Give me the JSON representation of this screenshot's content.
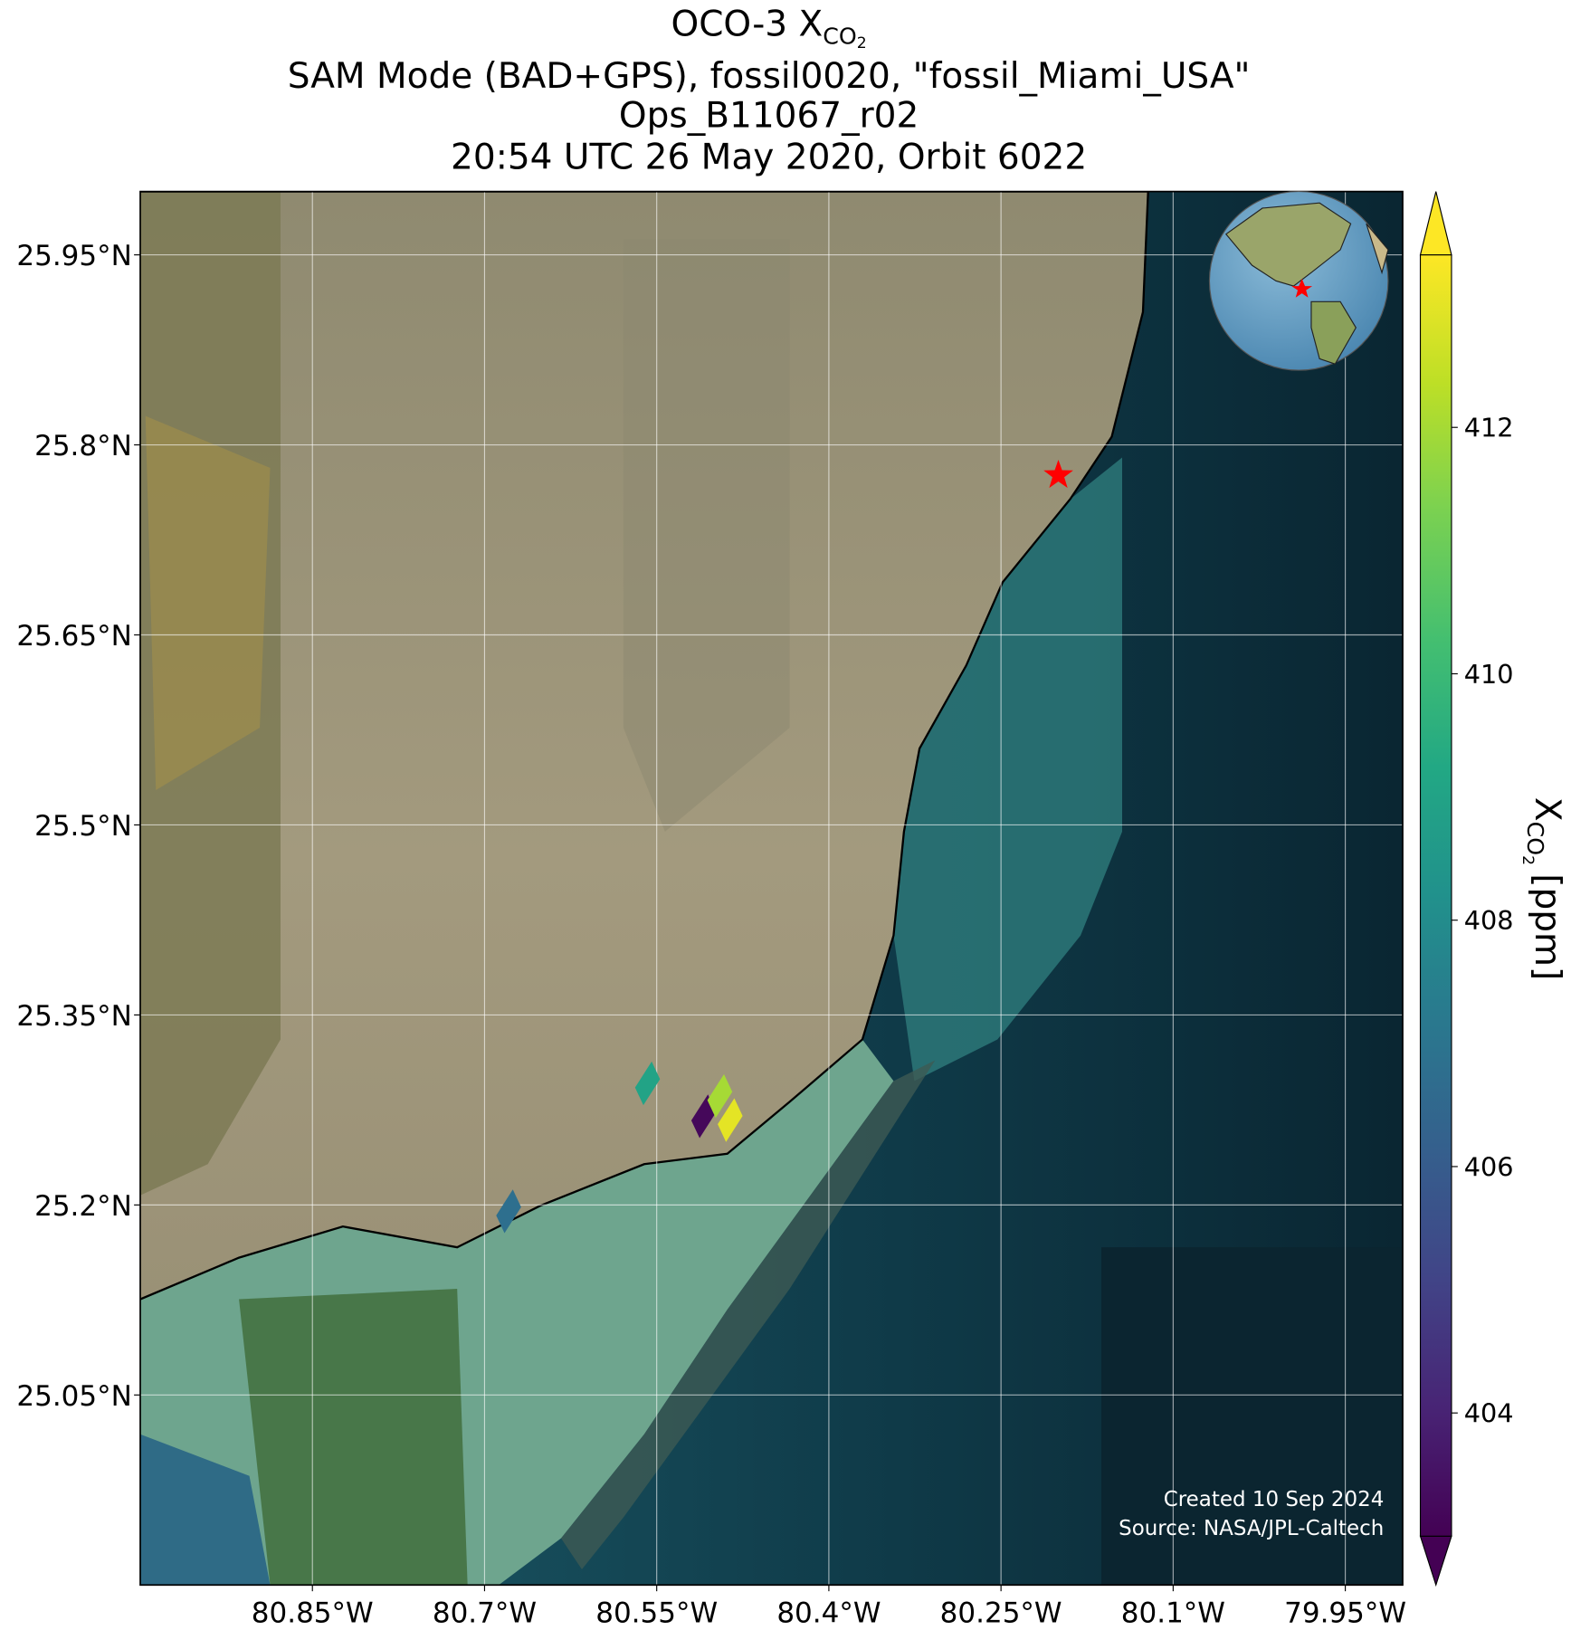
{
  "chart_data": {
    "type": "map",
    "title_prefix": "OCO-3",
    "quantity": {
      "symbol": "X",
      "sub": "CO",
      "subsub": "2"
    },
    "subtitle_lines": [
      "SAM Mode (BAD+GPS), fossil0020, \"fossil_Miami_USA\"",
      "Ops_B11067_r02",
      "20:54 UTC 26 May 2020, Orbit 6022"
    ],
    "xlim": [
      -81.0,
      -79.9
    ],
    "ylim": [
      24.9,
      26.0
    ],
    "xticks": [
      {
        "value": -80.85,
        "label": "80.85°W"
      },
      {
        "value": -80.7,
        "label": "80.7°W"
      },
      {
        "value": -80.55,
        "label": "80.55°W"
      },
      {
        "value": -80.4,
        "label": "80.4°W"
      },
      {
        "value": -80.25,
        "label": "80.25°W"
      },
      {
        "value": -80.1,
        "label": "80.1°W"
      },
      {
        "value": -79.95,
        "label": "79.95°W"
      }
    ],
    "yticks": [
      {
        "value": 25.95,
        "label": "25.95°N"
      },
      {
        "value": 25.8,
        "label": "25.8°N"
      },
      {
        "value": 25.65,
        "label": "25.65°N"
      },
      {
        "value": 25.5,
        "label": "25.5°N"
      },
      {
        "value": 25.35,
        "label": "25.35°N"
      },
      {
        "value": 25.2,
        "label": "25.2°N"
      },
      {
        "value": 25.05,
        "label": "25.05°N"
      }
    ],
    "grid": true,
    "soundings": {
      "lon": [
        -80.558,
        -80.509,
        -80.495,
        -80.486,
        -80.679
      ],
      "lat": [
        25.296,
        25.27,
        25.286,
        25.267,
        25.195
      ],
      "values": [
        409,
        403.2,
        412,
        413,
        406.8
      ]
    },
    "target": {
      "lon": -80.2,
      "lat": 25.776,
      "color": "red"
    },
    "colorbar": {
      "colormap": "viridis",
      "lim": [
        403,
        413.4
      ],
      "ticks": [
        404,
        406,
        408,
        410,
        412
      ],
      "units": "[ppm]"
    },
    "credits": [
      "Created 10 Sep 2024",
      "Source: NASA/JPL-Caltech"
    ]
  }
}
